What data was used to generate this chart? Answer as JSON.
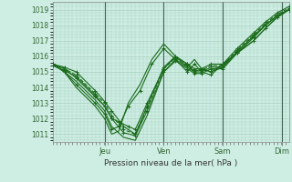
{
  "xlabel": "Pression niveau de la mer( hPa )",
  "ylim": [
    1010.5,
    1019.5
  ],
  "yticks": [
    1011,
    1012,
    1013,
    1014,
    1015,
    1016,
    1017,
    1018,
    1019
  ],
  "bg_color": "#ceeee4",
  "grid_color": "#a8cfc0",
  "line_color": "#1a6b1a",
  "day_labels": [
    "Jeu",
    "Ven",
    "Sam",
    "Dim"
  ],
  "day_positions": [
    0.22,
    0.47,
    0.72,
    0.97
  ],
  "vline_positions": [
    0.22,
    0.47,
    0.72,
    0.97
  ],
  "lines": [
    {
      "x": [
        0.0,
        0.05,
        0.1,
        0.18,
        0.22,
        0.25,
        0.3,
        0.35,
        0.4,
        0.47,
        0.52,
        0.57,
        0.6,
        0.63,
        0.67,
        0.72,
        0.78,
        0.85,
        0.9,
        0.95,
        1.0
      ],
      "y": [
        1015.5,
        1015.3,
        1015.0,
        1013.8,
        1013.1,
        1012.5,
        1011.5,
        1011.0,
        1012.8,
        1015.3,
        1016.0,
        1015.5,
        1015.2,
        1015.2,
        1015.5,
        1015.5,
        1016.5,
        1017.5,
        1018.2,
        1018.8,
        1019.2
      ],
      "style": "-",
      "marker": "+"
    },
    {
      "x": [
        0.0,
        0.05,
        0.1,
        0.18,
        0.22,
        0.25,
        0.3,
        0.35,
        0.4,
        0.47,
        0.52,
        0.57,
        0.6,
        0.63,
        0.67,
        0.72,
        0.78,
        0.85,
        0.9,
        0.95,
        1.0
      ],
      "y": [
        1015.4,
        1015.1,
        1014.7,
        1013.5,
        1012.8,
        1012.0,
        1011.1,
        1010.9,
        1012.5,
        1015.0,
        1015.7,
        1015.2,
        1014.9,
        1014.9,
        1015.2,
        1015.2,
        1016.2,
        1017.2,
        1018.0,
        1018.6,
        1019.0
      ],
      "style": "-",
      "marker": "+"
    },
    {
      "x": [
        0.0,
        0.05,
        0.1,
        0.18,
        0.22,
        0.25,
        0.3,
        0.35,
        0.4,
        0.47,
        0.52,
        0.57,
        0.6,
        0.63,
        0.67,
        0.72,
        0.78,
        0.85,
        0.9,
        0.95,
        1.0
      ],
      "y": [
        1015.5,
        1015.2,
        1014.8,
        1013.6,
        1013.0,
        1012.2,
        1011.3,
        1011.0,
        1012.7,
        1015.2,
        1015.9,
        1015.4,
        1015.1,
        1015.1,
        1015.4,
        1015.4,
        1016.4,
        1017.4,
        1018.1,
        1018.7,
        1019.1
      ],
      "style": "--",
      "marker": "+"
    },
    {
      "x": [
        0.0,
        0.05,
        0.1,
        0.18,
        0.22,
        0.25,
        0.3,
        0.35,
        0.4,
        0.47,
        0.52,
        0.57,
        0.6,
        0.63,
        0.67,
        0.72,
        0.78,
        0.85,
        0.9,
        0.95,
        1.0
      ],
      "y": [
        1015.5,
        1015.0,
        1014.4,
        1013.2,
        1012.5,
        1011.5,
        1010.8,
        1010.6,
        1012.2,
        1015.0,
        1015.8,
        1015.3,
        1015.0,
        1015.0,
        1015.3,
        1015.3,
        1016.3,
        1017.3,
        1018.0,
        1018.6,
        1019.0
      ],
      "style": "-",
      "marker": null
    },
    {
      "x": [
        0.0,
        0.05,
        0.1,
        0.18,
        0.22,
        0.25,
        0.28,
        0.32,
        0.37,
        0.42,
        0.47,
        0.52,
        0.57,
        0.6,
        0.63,
        0.67,
        0.72,
        0.78,
        0.85,
        0.9,
        0.95,
        1.0
      ],
      "y": [
        1015.5,
        1015.0,
        1014.2,
        1013.0,
        1012.3,
        1011.3,
        1011.5,
        1012.8,
        1013.8,
        1015.5,
        1016.5,
        1015.8,
        1015.0,
        1015.5,
        1015.0,
        1014.8,
        1015.5,
        1016.2,
        1017.0,
        1017.8,
        1018.5,
        1019.0
      ],
      "style": "-",
      "marker": "+"
    },
    {
      "x": [
        0.0,
        0.05,
        0.1,
        0.18,
        0.22,
        0.25,
        0.28,
        0.32,
        0.37,
        0.42,
        0.47,
        0.52,
        0.57,
        0.6,
        0.63,
        0.67,
        0.72,
        0.78,
        0.85,
        0.9,
        0.95,
        1.0
      ],
      "y": [
        1015.5,
        1015.0,
        1014.0,
        1012.8,
        1012.0,
        1011.0,
        1011.2,
        1013.0,
        1014.2,
        1015.8,
        1016.8,
        1016.0,
        1015.3,
        1015.8,
        1015.2,
        1015.0,
        1015.5,
        1016.2,
        1017.0,
        1017.8,
        1018.5,
        1019.0
      ],
      "style": "-",
      "marker": null
    },
    {
      "x": [
        0.0,
        0.05,
        0.1,
        0.18,
        0.22,
        0.25,
        0.28,
        0.32,
        0.35,
        0.4,
        0.47,
        0.52,
        0.57,
        0.6,
        0.63,
        0.67,
        0.72,
        0.78,
        0.85,
        0.9,
        0.95,
        1.0
      ],
      "y": [
        1015.5,
        1015.2,
        1014.6,
        1013.4,
        1012.8,
        1012.0,
        1011.8,
        1011.5,
        1011.3,
        1013.0,
        1015.2,
        1016.0,
        1015.5,
        1015.0,
        1015.2,
        1015.0,
        1015.3,
        1016.3,
        1017.3,
        1018.0,
        1018.6,
        1019.0
      ],
      "style": "-",
      "marker": "+"
    }
  ]
}
